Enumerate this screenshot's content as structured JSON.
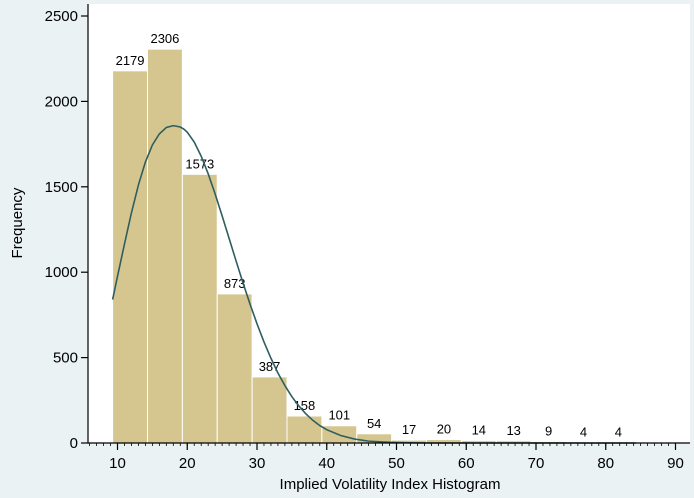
{
  "chart_data": {
    "type": "bar",
    "title": "",
    "xlabel": "Implied Volatility Index Histogram",
    "ylabel": "Frequency",
    "xlim": [
      5,
      90
    ],
    "ylim": [
      0,
      2500
    ],
    "x_ticks": [
      10,
      20,
      30,
      40,
      50,
      60,
      70,
      80,
      90
    ],
    "y_ticks": [
      0,
      500,
      1000,
      1500,
      2000,
      2500
    ],
    "bin_edges": [
      9.3,
      14.3,
      19.3,
      24.3,
      29.3,
      34.3,
      39.3,
      44.3,
      49.3,
      54.3,
      59.3,
      64.3,
      69.3,
      74.3,
      79.3,
      84.3
    ],
    "values": [
      2179,
      2306,
      1573,
      873,
      387,
      158,
      101,
      54,
      17,
      20,
      14,
      13,
      9,
      4,
      4
    ],
    "normal_curve": {
      "x": [
        9.3,
        10,
        11,
        12,
        13,
        14,
        15,
        16,
        17,
        18,
        19,
        19.5,
        20,
        21,
        22,
        23,
        24,
        25,
        26,
        27,
        28,
        29,
        30,
        31,
        32,
        33,
        34,
        35,
        36,
        37,
        38,
        39,
        40,
        42,
        44,
        46,
        48,
        50,
        52,
        55,
        60,
        65,
        70,
        75,
        80,
        84.3
      ],
      "y": [
        840,
        976,
        1165,
        1348,
        1511,
        1645,
        1745,
        1810,
        1847,
        1858,
        1850,
        1838,
        1820,
        1762,
        1679,
        1576,
        1458,
        1330,
        1198,
        1066,
        937,
        813,
        698,
        592,
        496,
        410,
        336,
        271,
        217,
        171,
        133,
        102,
        78,
        44,
        23,
        11,
        6,
        3,
        1,
        0,
        0,
        0,
        0,
        0,
        0,
        0
      ]
    },
    "grid": false,
    "legend": "none",
    "colors": {
      "bar_fill": "#d5c68f",
      "bar_stroke": "#ffffff",
      "curve": "#2e5e61",
      "plot_bg": "#ffffff",
      "page_bg": "#eaf2f3",
      "axis": "#000000"
    }
  }
}
